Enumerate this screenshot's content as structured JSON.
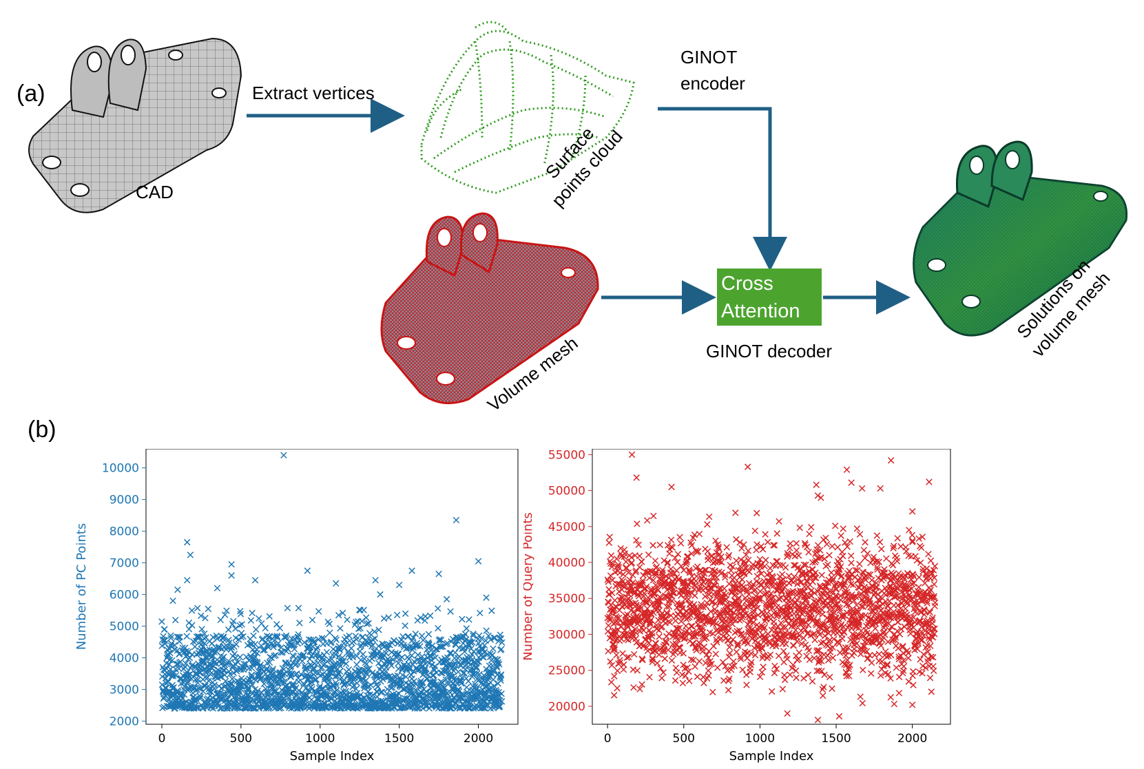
{
  "panel_a_label": "(a)",
  "panel_b_label": "(b)",
  "flow": {
    "cad_label": "CAD",
    "extract_label": "Extract vertices",
    "surface_label_line1": "Surface",
    "surface_label_line2": "points cloud",
    "encoder_line1": "GINOT",
    "encoder_line2": "encoder",
    "volume_label": "Volume mesh",
    "cross_line1": "Cross",
    "cross_line2": "Attention",
    "decoder_label": "GINOT decoder",
    "solutions_line1": "Solutions on",
    "solutions_line2": "volume mesh"
  },
  "colors": {
    "arrow": "#1f5f85",
    "cross_box": "#4ca42f",
    "pc_series": "#1f77b4",
    "query_series": "#d62728"
  },
  "chart_data": [
    {
      "type": "scatter",
      "marker": "x",
      "xlabel": "Sample Index",
      "ylabel": "Number of PC Points",
      "xlim": [
        -100,
        2250
      ],
      "ylim": [
        1900,
        10600
      ],
      "xticks": [
        0,
        500,
        1000,
        1500,
        2000
      ],
      "yticks": [
        2000,
        3000,
        4000,
        5000,
        6000,
        7000,
        8000,
        9000,
        10000
      ],
      "n_samples": 2150,
      "typical_range": [
        2300,
        5500
      ],
      "outliers": [
        {
          "x": 770,
          "y": 10400
        },
        {
          "x": 1860,
          "y": 8350
        },
        {
          "x": 160,
          "y": 7650
        },
        {
          "x": 180,
          "y": 7250
        },
        {
          "x": 2000,
          "y": 7050
        },
        {
          "x": 440,
          "y": 6950
        },
        {
          "x": 440,
          "y": 6600
        },
        {
          "x": 920,
          "y": 6750
        },
        {
          "x": 1580,
          "y": 6750
        },
        {
          "x": 1750,
          "y": 6650
        },
        {
          "x": 1350,
          "y": 6450
        },
        {
          "x": 590,
          "y": 6450
        },
        {
          "x": 160,
          "y": 6450
        },
        {
          "x": 1100,
          "y": 6350
        },
        {
          "x": 1500,
          "y": 6300
        },
        {
          "x": 350,
          "y": 6200
        },
        {
          "x": 100,
          "y": 6150
        },
        {
          "x": 70,
          "y": 5800
        },
        {
          "x": 1380,
          "y": 6000
        },
        {
          "x": 1800,
          "y": 5850
        },
        {
          "x": 2050,
          "y": 5900
        }
      ]
    },
    {
      "type": "scatter",
      "marker": "x",
      "xlabel": "Sample Index",
      "ylabel": "Number of Query Points",
      "xlim": [
        -100,
        2250
      ],
      "ylim": [
        17500,
        55800
      ],
      "xticks": [
        0,
        500,
        1000,
        1500,
        2000
      ],
      "yticks": [
        20000,
        25000,
        30000,
        35000,
        40000,
        45000,
        50000,
        55000
      ],
      "n_samples": 2150,
      "typical_range": [
        19000,
        48000
      ],
      "outliers": [
        {
          "x": 160,
          "y": 55000
        },
        {
          "x": 1860,
          "y": 54200
        },
        {
          "x": 920,
          "y": 53300
        },
        {
          "x": 1570,
          "y": 52900
        },
        {
          "x": 190,
          "y": 51800
        },
        {
          "x": 2110,
          "y": 51200
        },
        {
          "x": 1600,
          "y": 51100
        },
        {
          "x": 1370,
          "y": 50800
        },
        {
          "x": 420,
          "y": 50500
        },
        {
          "x": 1670,
          "y": 50300
        },
        {
          "x": 1790,
          "y": 50300
        },
        {
          "x": 1380,
          "y": 49300
        },
        {
          "x": 1400,
          "y": 49000
        },
        {
          "x": 2000,
          "y": 47100
        },
        {
          "x": 1380,
          "y": 18100
        },
        {
          "x": 1180,
          "y": 19000
        },
        {
          "x": 1520,
          "y": 18600
        },
        {
          "x": 2000,
          "y": 20200
        }
      ]
    }
  ]
}
